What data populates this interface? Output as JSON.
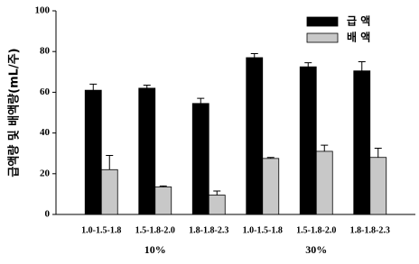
{
  "chart_data": {
    "type": "bar",
    "ylabel": "급액량 및 배액량(mL/주)",
    "categories": [
      "1.0-1.5-1.8",
      "1.5-1.8-2.0",
      "1.8-1.8-2.3",
      "1.0-1.5-1.8",
      "1.5-1.8-2.0",
      "1.8-1.8-2.3"
    ],
    "group_labels": [
      "10%",
      "30%"
    ],
    "series": [
      {
        "name": "급 액",
        "color": "#000000",
        "values": [
          61,
          62,
          54.5,
          77,
          72.5,
          70.5
        ],
        "errors": [
          3,
          1.5,
          2.5,
          2,
          2,
          4.5
        ]
      },
      {
        "name": "배 액",
        "color": "#c8c8c8",
        "values": [
          22,
          13.5,
          9.5,
          27.5,
          31,
          28
        ],
        "errors": [
          7,
          0.5,
          2,
          0.5,
          3,
          4.5
        ]
      }
    ],
    "ylim": [
      0,
      100
    ],
    "yticks": [
      0,
      20,
      40,
      60,
      80,
      100
    ],
    "legend": "upper right"
  }
}
